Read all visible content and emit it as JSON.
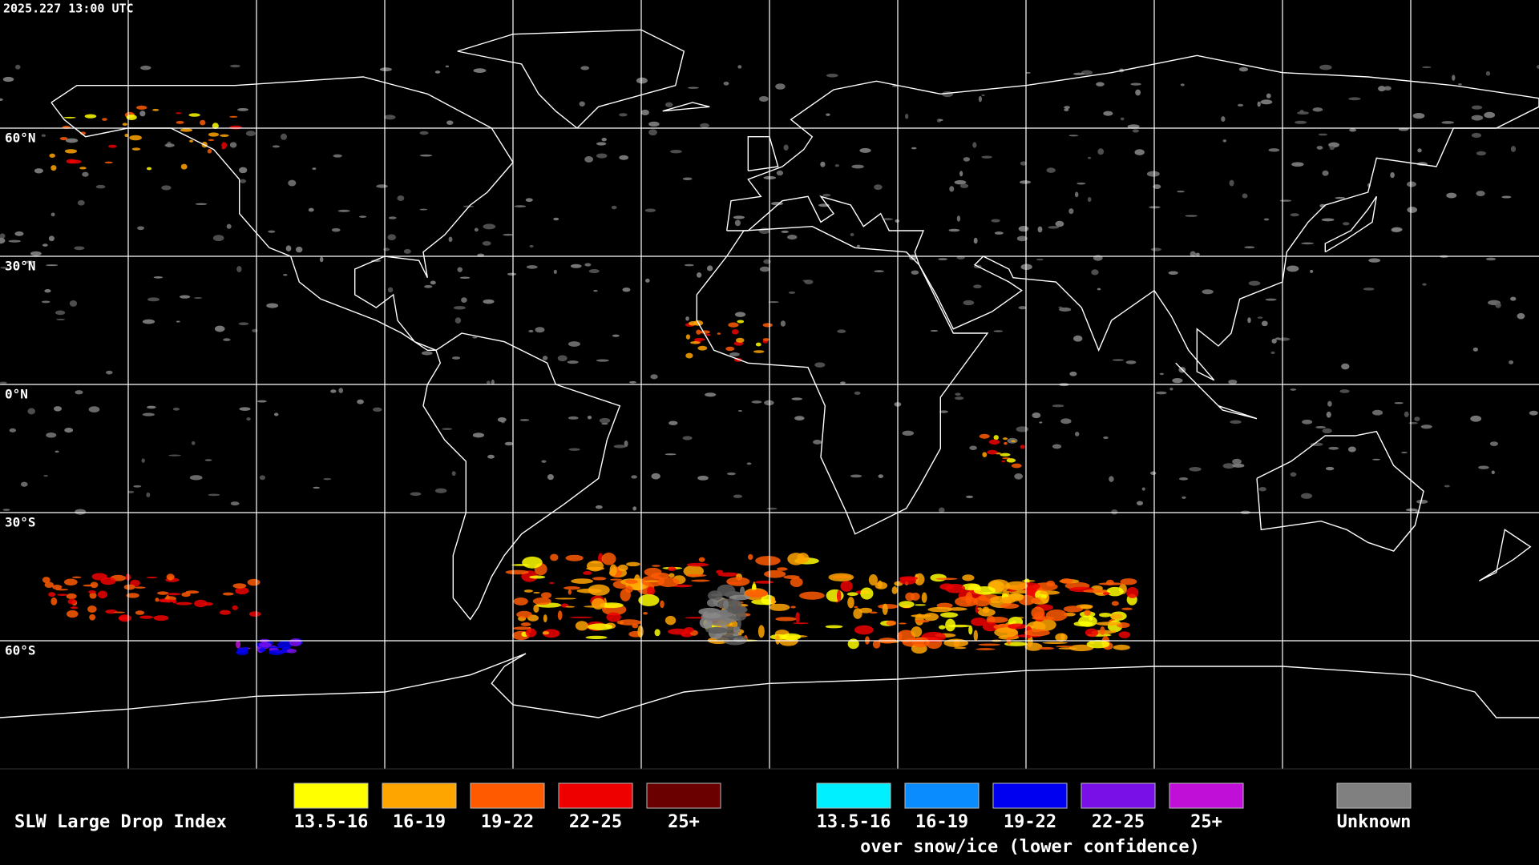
{
  "header": {
    "timestamp": "2025.227 13:00 UTC"
  },
  "map": {
    "lat_labels": [
      "60°N",
      "30°N",
      "0°N",
      "30°S",
      "60°S"
    ]
  },
  "legend": {
    "title": "SLW Large Drop Index",
    "groups": [
      {
        "items": [
          {
            "label": "13.5-16",
            "color": "#ffff00"
          },
          {
            "label": "16-19",
            "color": "#ffa500"
          },
          {
            "label": "19-22",
            "color": "#ff5a00"
          },
          {
            "label": "22-25",
            "color": "#ee0000"
          },
          {
            "label": "25+",
            "color": "#6a0000"
          }
        ]
      },
      {
        "items": [
          {
            "label": "13.5-16",
            "color": "#00f0ff"
          },
          {
            "label": "16-19",
            "color": "#0a8cff"
          },
          {
            "label": "19-22",
            "color": "#0000f0"
          },
          {
            "label": "22-25",
            "color": "#7a10e8"
          },
          {
            "label": "25+",
            "color": "#c010d8"
          }
        ],
        "caption": "over snow/ice (lower confidence)"
      },
      {
        "items": [
          {
            "label": "Unknown",
            "color": "#808080"
          }
        ]
      }
    ]
  }
}
